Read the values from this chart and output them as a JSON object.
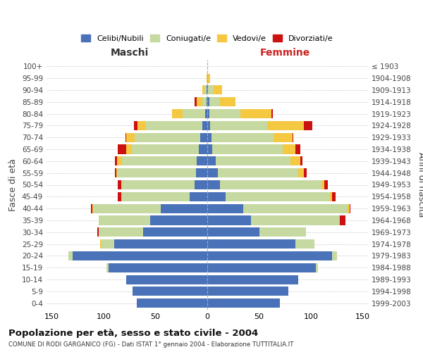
{
  "age_groups": [
    "0-4",
    "5-9",
    "10-14",
    "15-19",
    "20-24",
    "25-29",
    "30-34",
    "35-39",
    "40-44",
    "45-49",
    "50-54",
    "55-59",
    "60-64",
    "65-69",
    "70-74",
    "75-79",
    "80-84",
    "85-89",
    "90-94",
    "95-99",
    "100+"
  ],
  "birth_years": [
    "1999-2003",
    "1994-1998",
    "1989-1993",
    "1984-1988",
    "1979-1983",
    "1974-1978",
    "1969-1973",
    "1964-1968",
    "1959-1963",
    "1954-1958",
    "1949-1953",
    "1944-1948",
    "1939-1943",
    "1934-1938",
    "1929-1933",
    "1924-1928",
    "1919-1923",
    "1914-1918",
    "1909-1913",
    "1904-1908",
    "≤ 1903"
  ],
  "colors": {
    "celibi": "#4a72b8",
    "coniugati": "#c5d9a0",
    "vedovi": "#f5c842",
    "divorziati": "#cc1111"
  },
  "maschi": {
    "celibi": [
      68,
      72,
      78,
      95,
      130,
      90,
      62,
      55,
      45,
      17,
      12,
      11,
      10,
      8,
      7,
      5,
      2,
      1,
      1,
      0,
      0
    ],
    "coniugati": [
      0,
      0,
      0,
      2,
      4,
      12,
      43,
      50,
      65,
      65,
      70,
      75,
      72,
      65,
      63,
      55,
      22,
      4,
      2,
      0,
      0
    ],
    "vedovi": [
      0,
      0,
      0,
      0,
      0,
      1,
      0,
      0,
      1,
      1,
      1,
      2,
      5,
      5,
      8,
      7,
      10,
      5,
      2,
      1,
      0
    ],
    "divorziati": [
      0,
      0,
      0,
      0,
      0,
      0,
      1,
      0,
      1,
      3,
      3,
      1,
      2,
      8,
      1,
      4,
      0,
      2,
      0,
      0,
      0
    ]
  },
  "femmine": {
    "celibi": [
      70,
      78,
      88,
      105,
      120,
      85,
      50,
      42,
      35,
      18,
      12,
      10,
      8,
      5,
      4,
      3,
      2,
      2,
      1,
      0,
      0
    ],
    "coniugati": [
      0,
      0,
      0,
      2,
      5,
      18,
      45,
      85,
      100,
      100,
      98,
      78,
      72,
      68,
      60,
      55,
      30,
      10,
      5,
      1,
      0
    ],
    "vedovi": [
      0,
      0,
      0,
      0,
      0,
      0,
      0,
      1,
      2,
      2,
      3,
      5,
      10,
      12,
      18,
      35,
      30,
      15,
      8,
      2,
      0
    ],
    "divorziati": [
      0,
      0,
      0,
      0,
      0,
      0,
      0,
      5,
      1,
      4,
      3,
      3,
      2,
      5,
      1,
      8,
      1,
      0,
      0,
      0,
      0
    ]
  },
  "title": "Popolazione per età, sesso e stato civile - 2004",
  "subtitle": "COMUNE DI RODI GARGANICO (FG) - Dati ISTAT 1° gennaio 2004 - Elaborazione TUTTITALIA.IT",
  "xlabel_left": "Maschi",
  "xlabel_right": "Femmine",
  "ylabel_left": "Fasce di età",
  "ylabel_right": "Anni di nascita",
  "xlim": 155,
  "legend_labels": [
    "Celibi/Nubili",
    "Coniugati/e",
    "Vedovi/e",
    "Divorziati/e"
  ]
}
